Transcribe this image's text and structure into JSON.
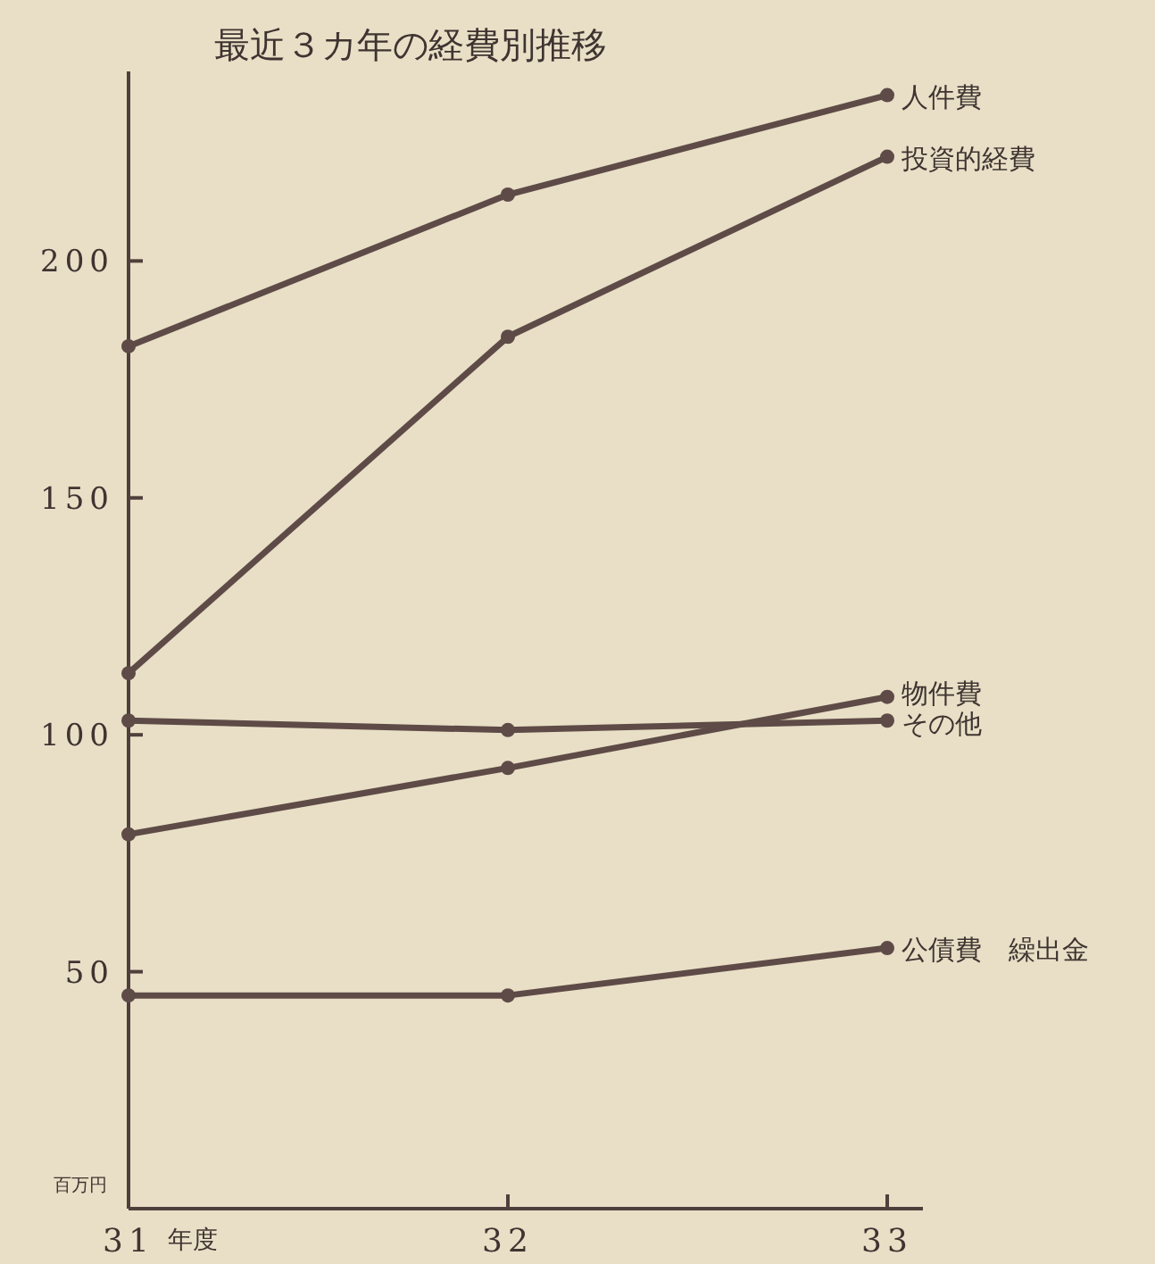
{
  "chart_data": {
    "type": "line",
    "title": "最近３カ年の経費別推移",
    "xlabel": "年度",
    "ylabel": "百万円",
    "categories": [
      "31",
      "32",
      "33"
    ],
    "series": [
      {
        "name": "人件費",
        "color": "#5e4b47",
        "values": [
          182,
          214,
          235
        ]
      },
      {
        "name": "投資的経費",
        "color": "#5e4b47",
        "values": [
          113,
          184,
          222
        ]
      },
      {
        "name": "物件費",
        "color": "#5e4b47",
        "values": [
          79,
          93,
          108
        ]
      },
      {
        "name": "その他",
        "color": "#5e4b47",
        "values": [
          103,
          101,
          103
        ]
      },
      {
        "name": "公債費　繰出金",
        "color": "#5e4b47",
        "values": [
          45,
          45,
          55
        ]
      }
    ],
    "ylim": [
      0,
      240
    ],
    "yticks": [
      50,
      100,
      150,
      200
    ],
    "marker": "circle",
    "line_style": "solid",
    "grid": false
  }
}
